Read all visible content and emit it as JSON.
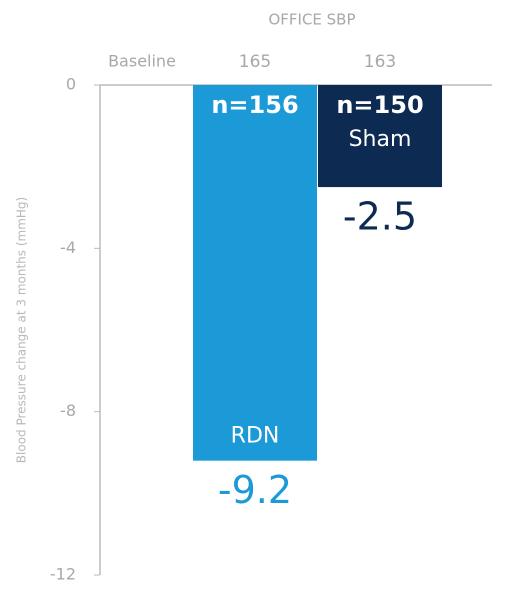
{
  "chart_data": {
    "type": "bar",
    "title": "OFFICE SBP",
    "y_label": "Blood Pressure change at 3 months (mmHg)",
    "baseline_label": "Baseline",
    "baseline_values": [
      165,
      163
    ],
    "n_labels": [
      "n=156",
      "n=150"
    ],
    "categories": [
      "RDN",
      "Sham"
    ],
    "values": [
      -9.2,
      -2.5
    ],
    "colors": [
      "#1b9ad7",
      "#0c2a52"
    ],
    "ylim": [
      -12,
      0
    ],
    "yticks": [
      0,
      -4,
      -8,
      -12
    ]
  }
}
